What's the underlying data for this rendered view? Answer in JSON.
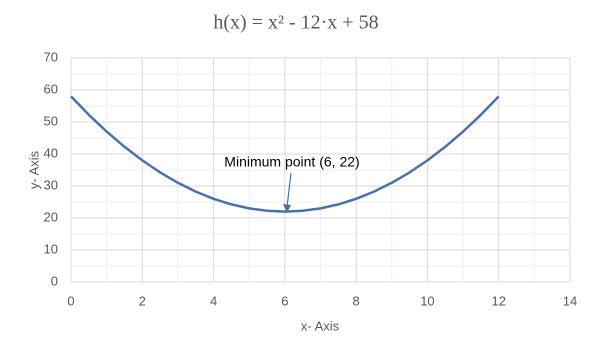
{
  "chart_data": {
    "type": "line",
    "title": "h(x) = x² - 12·x + 58",
    "x_label": "x- Axis",
    "y_label": "y- Axis",
    "annotation": "Minimum point (6, 22)",
    "x": [
      0,
      0.5,
      1,
      1.5,
      2,
      2.5,
      3,
      3.5,
      4,
      4.5,
      5,
      5.5,
      6,
      6.5,
      7,
      7.5,
      8,
      8.5,
      9,
      9.5,
      10,
      10.5,
      11,
      11.5,
      12
    ],
    "series": [
      {
        "color": "#4a72a8",
        "values": [
          58,
          52.25,
          47,
          42.25,
          38,
          34.25,
          31,
          28.25,
          26,
          24.25,
          23,
          22.25,
          22,
          22.25,
          23,
          24.25,
          26,
          28.25,
          31,
          34.25,
          38,
          42.25,
          47,
          52.25,
          58
        ]
      }
    ],
    "xlim": [
      0,
      14
    ],
    "xticks": [
      0,
      2,
      4,
      6,
      8,
      10,
      12,
      14
    ],
    "ylim": [
      0,
      70
    ],
    "yticks": [
      0,
      10,
      20,
      30,
      40,
      50,
      60,
      70
    ],
    "grid": true,
    "minor_grid": true
  }
}
